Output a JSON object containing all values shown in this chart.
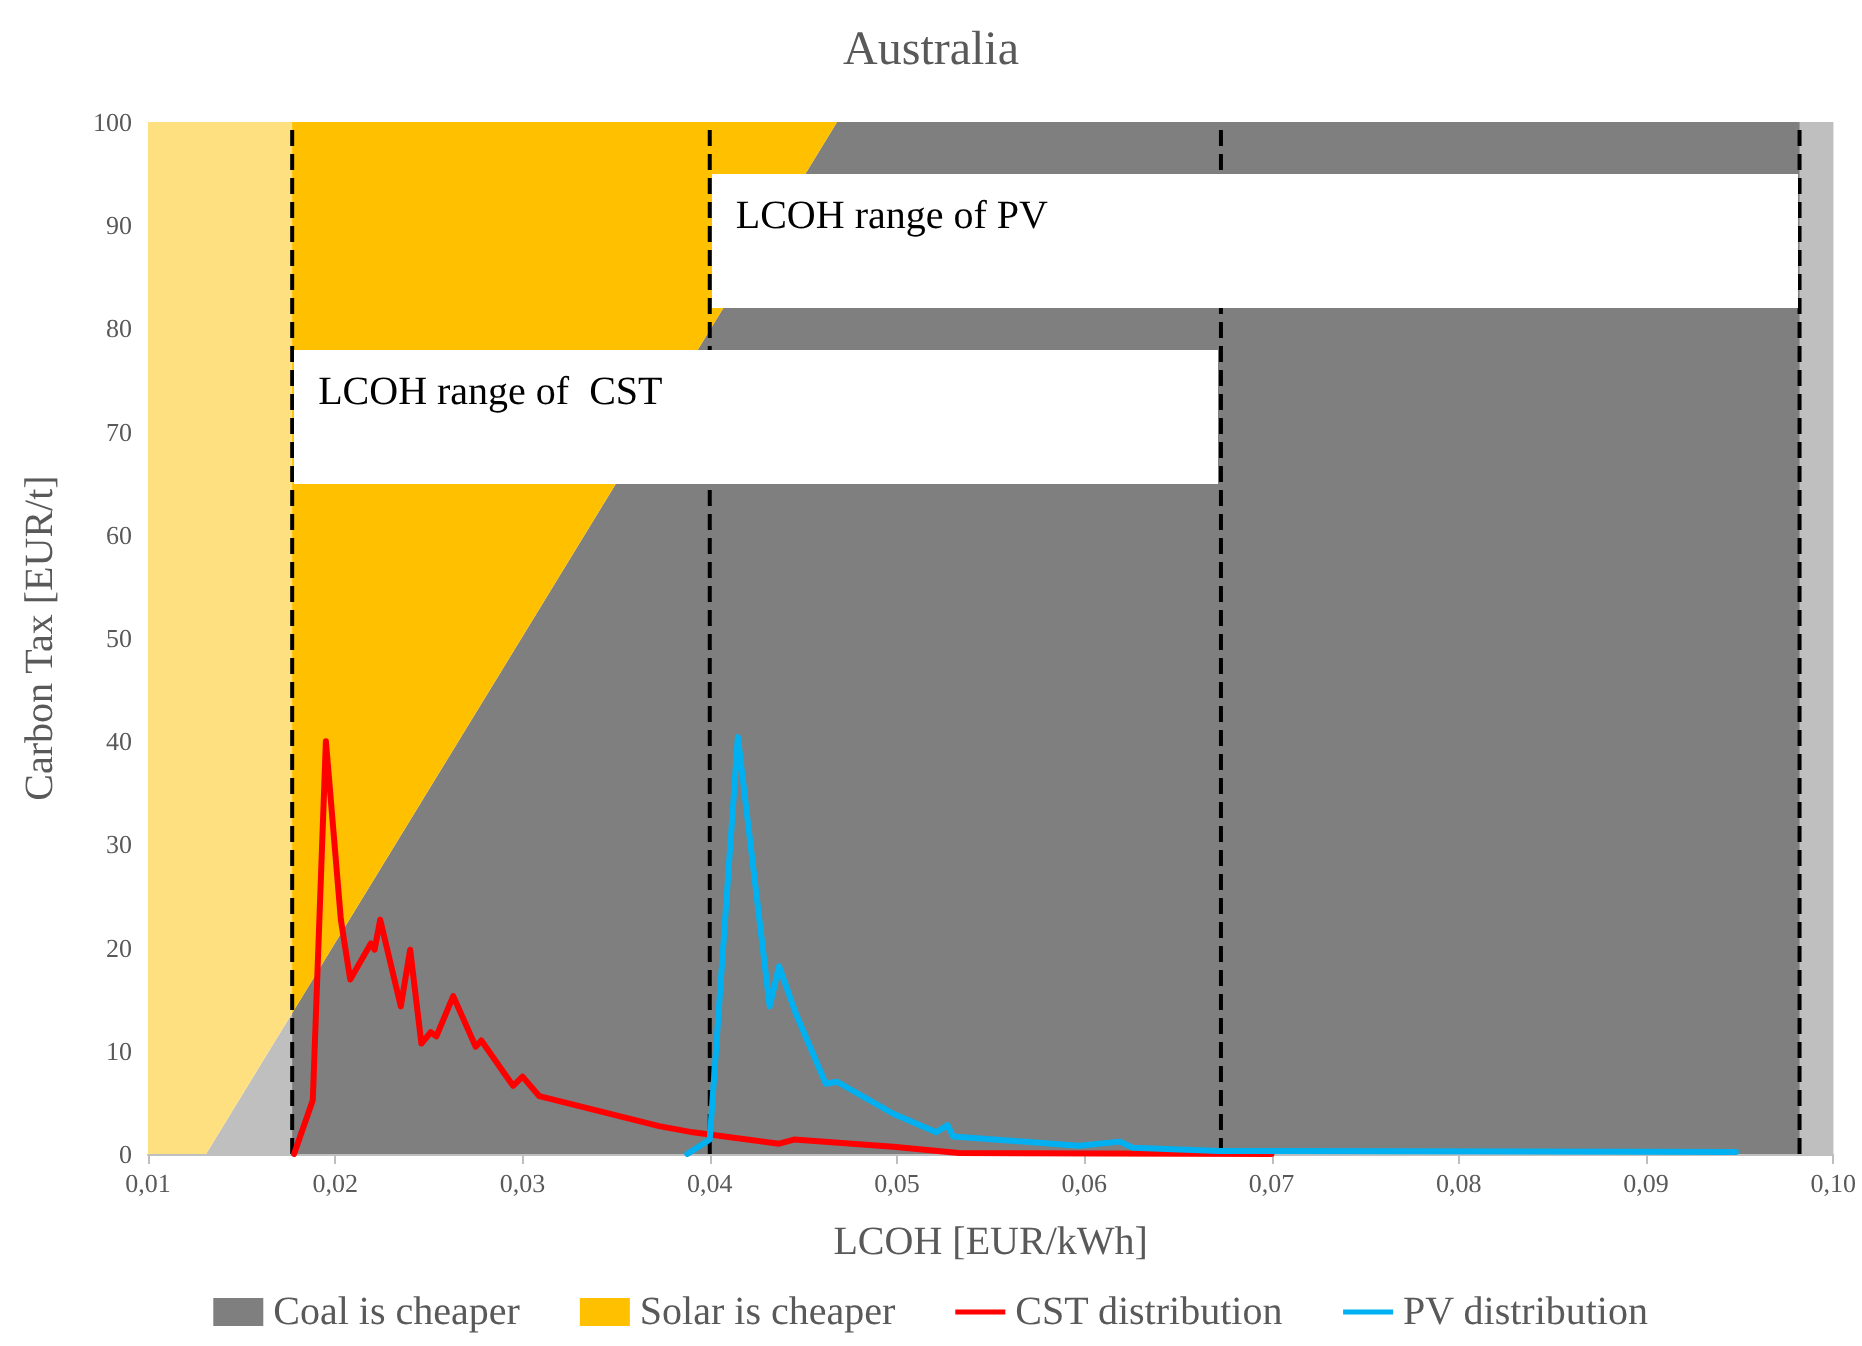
{
  "chart_data": {
    "type": "line",
    "title": "Australia",
    "xlabel": "LCOH [EUR/kWh]",
    "ylabel": "Carbon Tax [EUR/t]",
    "xlim": [
      0.01,
      0.1
    ],
    "xticks": [
      {
        "value": 0.01,
        "label": "0,01"
      },
      {
        "value": 0.02,
        "label": "0,02"
      },
      {
        "value": 0.03,
        "label": "0,03"
      },
      {
        "value": 0.04,
        "label": "0,04"
      },
      {
        "value": 0.05,
        "label": "0,05"
      },
      {
        "value": 0.06,
        "label": "0,06"
      },
      {
        "value": 0.07,
        "label": "0,07"
      },
      {
        "value": 0.08,
        "label": "0,08"
      },
      {
        "value": 0.09,
        "label": "0,09"
      },
      {
        "value": 0.1,
        "label": "0,10"
      }
    ],
    "ylim": [
      0,
      100
    ],
    "yticks": [
      0,
      10,
      20,
      30,
      40,
      50,
      60,
      70,
      80,
      90,
      100
    ],
    "grid": false,
    "legend": "bottom",
    "marker": "none",
    "stacked": true,
    "series": [
      {
        "name": "Coal is cheaper",
        "type": "area",
        "color": "#7f7f7f",
        "x": [
          0.01,
          0.0131,
          0.0468,
          0.1
        ],
        "values": [
          0,
          0,
          100,
          100
        ]
      },
      {
        "name": "Solar is cheaper",
        "type": "area",
        "color": "#ffc000",
        "x": [
          0.01,
          0.0131,
          0.0468
        ],
        "values": [
          100,
          100,
          0
        ]
      },
      {
        "name": "CST distribution",
        "type": "line",
        "color": "#ff0000",
        "x": [
          0.0178,
          0.0188,
          0.0195,
          0.0203,
          0.0208,
          0.0219,
          0.0221,
          0.0224,
          0.0235,
          0.024,
          0.0246,
          0.0251,
          0.0254,
          0.0263,
          0.0275,
          0.0278,
          0.0295,
          0.03,
          0.0309,
          0.0373,
          0.0391,
          0.0437,
          0.0445,
          0.0498,
          0.0533,
          0.07
        ],
        "values": [
          0,
          5.2,
          40,
          22.7,
          16.9,
          20.4,
          19.8,
          22.7,
          14.3,
          19.8,
          10.7,
          11.8,
          11.4,
          15.3,
          10.4,
          11,
          6.6,
          7.5,
          5.6,
          2.7,
          2.1,
          1,
          1.4,
          0.7,
          0.1,
          0
        ]
      },
      {
        "name": "PV distribution",
        "type": "line",
        "color": "#00b0f0",
        "x": [
          0.0388,
          0.04,
          0.0415,
          0.0432,
          0.0437,
          0.0446,
          0.0462,
          0.0468,
          0.0498,
          0.0521,
          0.0527,
          0.053,
          0.0597,
          0.0619,
          0.0626,
          0.0672,
          0.0948
        ],
        "values": [
          0,
          1.4,
          40.4,
          14.3,
          18.2,
          13.6,
          6.8,
          7,
          3.9,
          2.1,
          2.8,
          1.7,
          0.8,
          1.2,
          0.6,
          0.3,
          0.2
        ]
      }
    ],
    "ref_lines": [
      {
        "axis": "x",
        "value": 0.0177,
        "color": "#000000",
        "line_style": "dashed"
      },
      {
        "axis": "x",
        "value": 0.04,
        "color": "#000000",
        "line_style": "dashed"
      },
      {
        "axis": "x",
        "value": 0.0673,
        "color": "#000000",
        "line_style": "dashed"
      },
      {
        "axis": "x",
        "value": 0.0982,
        "color": "#000000",
        "line_style": "dashed"
      }
    ],
    "bands": [
      {
        "axis": "x",
        "from": 0.01,
        "to": 0.0177,
        "color": "#ffffff"
      },
      {
        "axis": "x",
        "from": 0.0982,
        "to": 0.1,
        "color": "#ffffff"
      }
    ],
    "annotations": [
      {
        "text": "LCOH range of  CST",
        "x": 0.0177,
        "y": 78
      },
      {
        "text": "LCOH range of PV",
        "x": 0.04,
        "y": 95
      }
    ]
  }
}
